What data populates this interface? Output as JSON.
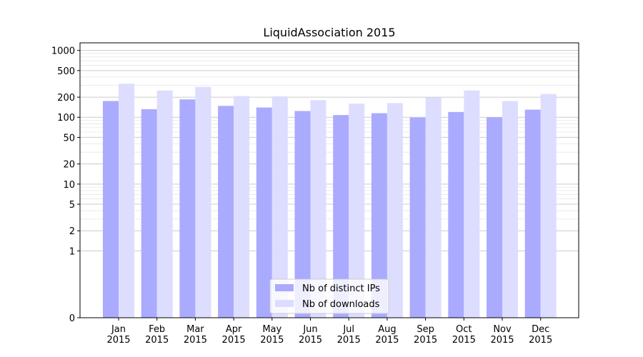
{
  "chart_data": {
    "type": "bar",
    "title": "LiquidAssociation 2015",
    "xlabel": "",
    "ylabel": "",
    "y_scale": "symlog",
    "ylim": [
      0,
      1300
    ],
    "y_ticks": [
      0,
      1,
      2,
      5,
      10,
      20,
      50,
      100,
      200,
      500,
      1000
    ],
    "grid": true,
    "legend_position": "bottom-center",
    "categories": [
      "Jan\n2015",
      "Feb\n2015",
      "Mar\n2015",
      "Apr\n2015",
      "May\n2015",
      "Jun\n2015",
      "Jul\n2015",
      "Aug\n2015",
      "Sep\n2015",
      "Oct\n2015",
      "Nov\n2015",
      "Dec\n2015"
    ],
    "series": [
      {
        "name": "Nb of distinct IPs",
        "color": "#aaaaff",
        "values": [
          175,
          132,
          185,
          148,
          140,
          124,
          108,
          115,
          99,
          120,
          100,
          130
        ]
      },
      {
        "name": "Nb of downloads",
        "color": "#ddddff",
        "values": [
          318,
          252,
          285,
          208,
          206,
          180,
          160,
          163,
          198,
          252,
          175,
          223
        ]
      }
    ]
  }
}
